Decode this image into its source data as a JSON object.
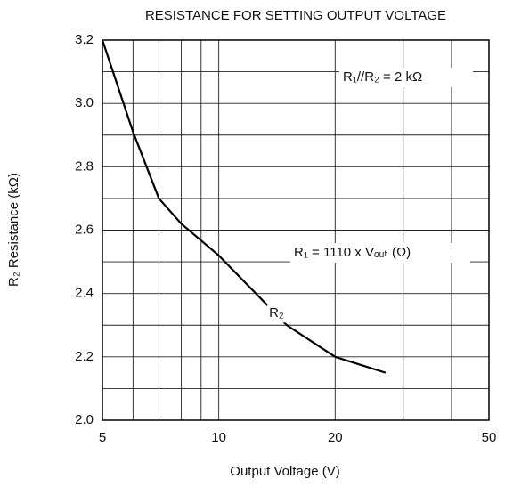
{
  "chart_data": {
    "type": "line",
    "title": "RESISTANCE FOR SETTING OUTPUT VOLTAGE",
    "xlabel": "Output Voltage (V)",
    "ylabel": "R₂ Resistance (kΩ)",
    "xscale": "log",
    "xlim": [
      5,
      50
    ],
    "xticks": [
      5,
      10,
      20,
      50
    ],
    "xgrid": [
      6,
      7,
      8,
      9,
      30,
      40
    ],
    "ylim": [
      2.0,
      3.2
    ],
    "yticks": [
      {
        "value": 2.0,
        "label": "2.0"
      },
      2.2,
      2.4,
      2.6,
      2.8,
      {
        "value": 3.0,
        "label": "3.0"
      },
      3.2
    ],
    "ygrid": [
      2.1,
      2.3,
      2.5,
      2.7,
      2.9,
      3.1
    ],
    "grid": true,
    "x": [
      5,
      6,
      7,
      8,
      10,
      15,
      20,
      27
    ],
    "series": [
      {
        "name": "R₂",
        "color": "#000000",
        "values": [
          3.2,
          2.91,
          2.7,
          2.62,
          2.52,
          2.3,
          2.2,
          2.15
        ]
      }
    ],
    "annotations": [
      "R₁//R₂ = 2 kΩ",
      "R₁ = 1110 x Vₒᵤₜ (Ω)"
    ]
  }
}
